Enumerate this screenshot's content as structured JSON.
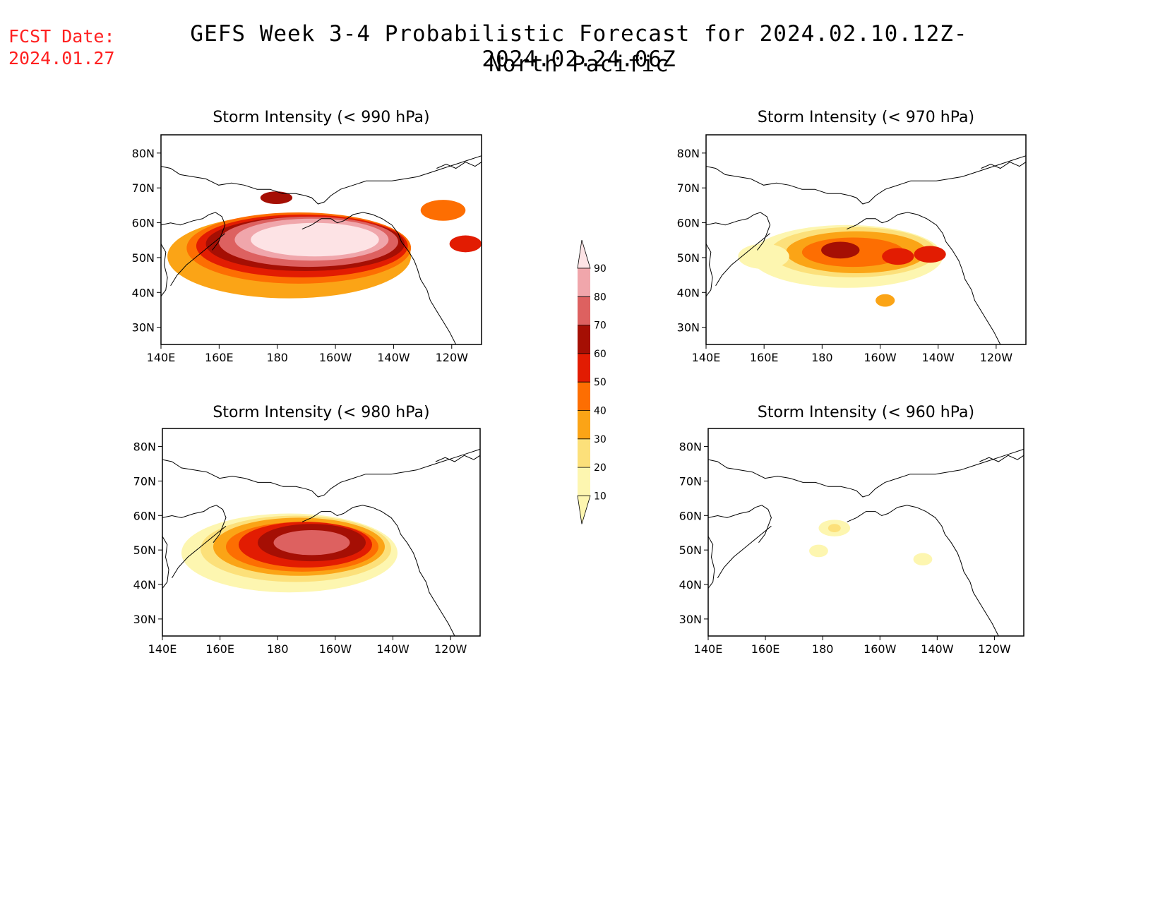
{
  "forecast_date": {
    "label": "FCST Date:",
    "value": "2024.01.27"
  },
  "title": "GEFS Week 3-4 Probabilistic Forecast for 2024.02.10.12Z-2024.02.24.06Z",
  "subtitle": "North Pacific",
  "axes": {
    "lat_ticks": [
      "30N",
      "40N",
      "50N",
      "60N",
      "70N",
      "80N"
    ],
    "lon_ticks": [
      "140E",
      "160E",
      "180",
      "160W",
      "140W",
      "120W"
    ]
  },
  "colorbar": {
    "levels": [
      "10",
      "20",
      "30",
      "40",
      "50",
      "60",
      "70",
      "80",
      "90"
    ],
    "colors": [
      "#fdf6b0",
      "#fce07a",
      "#fba416",
      "#fd6e02",
      "#e21c02",
      "#a50f04",
      "#dd6160",
      "#f0a6ab",
      "#fde3e5"
    ]
  },
  "panels": [
    {
      "title": "Storm Intensity (< 990 hPa)"
    },
    {
      "title": "Storm Intensity (< 970 hPa)"
    },
    {
      "title": "Storm Intensity (< 980 hPa)"
    },
    {
      "title": "Storm Intensity (< 960 hPa)"
    }
  ]
}
